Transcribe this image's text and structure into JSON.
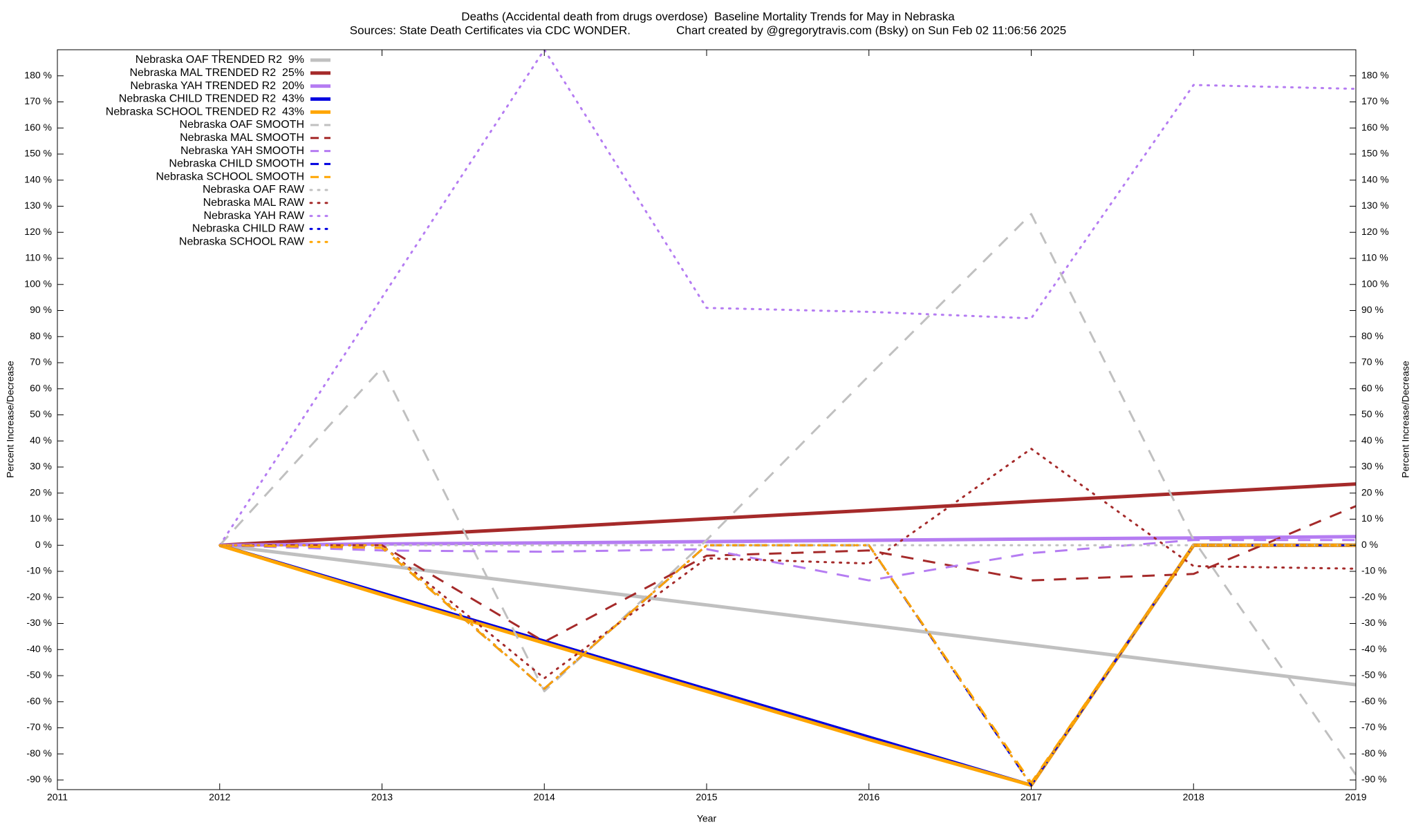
{
  "chart_data": {
    "type": "line",
    "title": "Deaths (Accidental death from drugs overdose)  Baseline Mortality Trends for May in Nebraska",
    "subtitle": "Sources: State Death Certificates via CDC WONDER.              Chart created by @gregorytravis.com (Bsky) on Sun Feb 02 11:06:56 2025",
    "xlabel": "Year",
    "ylabel": "Percent Increase/Decrease",
    "legend": "top-left",
    "xlim": [
      2011,
      2019
    ],
    "xticks": [
      2011,
      2012,
      2013,
      2014,
      2015,
      2016,
      2017,
      2018,
      2019
    ],
    "ylim": [
      -93.7,
      190
    ],
    "yticks": [
      {
        "value": -90,
        "label": "-90 %"
      },
      {
        "value": -80,
        "label": "-80 %"
      },
      {
        "value": -70,
        "label": "-70 %"
      },
      {
        "value": -60,
        "label": "-60 %"
      },
      {
        "value": -50,
        "label": "-50 %"
      },
      {
        "value": -40,
        "label": "-40 %"
      },
      {
        "value": -30,
        "label": "-30 %"
      },
      {
        "value": -20,
        "label": "-20 %"
      },
      {
        "value": -10,
        "label": "-10 %"
      },
      {
        "value": 0,
        "label": "0 %"
      },
      {
        "value": 10,
        "label": "10 %"
      },
      {
        "value": 20,
        "label": "20 %"
      },
      {
        "value": 30,
        "label": "30 %"
      },
      {
        "value": 40,
        "label": "40 %"
      },
      {
        "value": 50,
        "label": "50 %"
      },
      {
        "value": 60,
        "label": "60 %"
      },
      {
        "value": 70,
        "label": "70 %"
      },
      {
        "value": 80,
        "label": "80 %"
      },
      {
        "value": 90,
        "label": "90 %"
      },
      {
        "value": 100,
        "label": "100 %"
      },
      {
        "value": 110,
        "label": "110 %"
      },
      {
        "value": 120,
        "label": "120 %"
      },
      {
        "value": 130,
        "label": "130 %"
      },
      {
        "value": 140,
        "label": "140 %"
      },
      {
        "value": 150,
        "label": "150 %"
      },
      {
        "value": 160,
        "label": "160 %"
      },
      {
        "value": 170,
        "label": "170 %"
      },
      {
        "value": 180,
        "label": "180 %"
      }
    ],
    "x": [
      2012,
      2013,
      2014,
      2015,
      2016,
      2017,
      2018,
      2019
    ],
    "series": [
      {
        "name": "Nebraska OAF TRENDED R2  9%",
        "color": "#c0c0c0",
        "line_style": "solid",
        "values": [
          0,
          -7.6,
          -15.3,
          -22.9,
          -30.6,
          -38.2,
          -45.9,
          -53.5
        ]
      },
      {
        "name": "Nebraska MAL TRENDED R2  25%",
        "color": "#a52a2a",
        "line_style": "solid",
        "values": [
          0,
          3.4,
          6.7,
          10.1,
          13.4,
          16.8,
          20.1,
          23.5
        ]
      },
      {
        "name": "Nebraska YAH TRENDED R2  20%",
        "color": "#b57cf2",
        "line_style": "solid",
        "values": [
          0,
          0.5,
          0.9,
          1.4,
          1.9,
          2.4,
          2.8,
          3.3
        ]
      },
      {
        "name": "Nebraska CHILD TRENDED R2  43%",
        "color": "#0000e0",
        "line_style": "solid",
        "values": [
          0,
          -18.4,
          -36.8,
          -55.2,
          -73.6,
          -92,
          0,
          0
        ]
      },
      {
        "name": "Nebraska SCHOOL TRENDED R2  43%",
        "color": "#ffa500",
        "line_style": "solid",
        "values": [
          0,
          -19,
          -37.5,
          -56,
          -74.5,
          -92,
          0,
          0
        ]
      },
      {
        "name": "Nebraska OAF SMOOTH",
        "color": "#c0c0c0",
        "line_style": "dashed",
        "values": [
          0,
          68,
          -56,
          2,
          65,
          127,
          2,
          -88
        ]
      },
      {
        "name": "Nebraska MAL SMOOTH",
        "color": "#a52a2a",
        "line_style": "dashed",
        "values": [
          0,
          0,
          -37,
          -4,
          -2,
          -13.5,
          -11,
          15
        ]
      },
      {
        "name": "Nebraska YAH SMOOTH",
        "color": "#b57cf2",
        "line_style": "dashed",
        "values": [
          0,
          -2,
          -2.5,
          -1.5,
          -13.5,
          -3,
          2,
          2
        ]
      },
      {
        "name": "Nebraska CHILD SMOOTH",
        "color": "#0000e0",
        "line_style": "dashed",
        "values": [
          0,
          -1,
          -55,
          0,
          0,
          -92,
          0,
          0
        ]
      },
      {
        "name": "Nebraska SCHOOL SMOOTH",
        "color": "#ffa500",
        "line_style": "dashed",
        "values": [
          0,
          -1,
          -55,
          0,
          0,
          -91,
          0,
          0
        ]
      },
      {
        "name": "Nebraska OAF RAW",
        "color": "#c0c0c0",
        "line_style": "dotted",
        "values": [
          0,
          0,
          0,
          0,
          0,
          0,
          0,
          0
        ]
      },
      {
        "name": "Nebraska MAL RAW",
        "color": "#a52a2a",
        "line_style": "dotted",
        "values": [
          0,
          0,
          -51,
          -5,
          -7,
          37,
          -8,
          -9
        ]
      },
      {
        "name": "Nebraska YAH RAW",
        "color": "#b57cf2",
        "line_style": "dotted",
        "values": [
          0,
          95,
          190,
          91,
          89.5,
          87,
          176.5,
          175
        ]
      },
      {
        "name": "Nebraska CHILD RAW",
        "color": "#0000e0",
        "line_style": "dotted",
        "values": [
          0,
          0,
          -55,
          0,
          0,
          -92,
          0,
          0
        ]
      },
      {
        "name": "Nebraska SCHOOL RAW",
        "color": "#ffa500",
        "line_style": "dotted",
        "values": [
          0,
          0,
          -55,
          0,
          0,
          -92,
          0,
          0
        ]
      }
    ]
  }
}
